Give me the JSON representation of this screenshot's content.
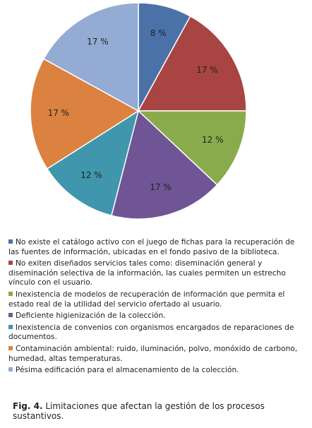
{
  "chart_data": {
    "type": "pie",
    "categories": [
      "No existe el catálogo activo con el juego de fichas para la recuperación de las fuentes de información, ubicadas en el fondo pasivo de la biblioteca.",
      "No exiten diseñados servicios tales como: diseminación general y diseminación selectiva de la información, las cuales permiten un estrecho vínculo con el usuario.",
      "Inexistencia de modelos de recuperación de información que permita el estado real de la utilidad del servicio ofertado al usuario.",
      "Deficiente higienización de la colección.",
      "Inexistencia de convenios con organismos encargados de reparaciones de documentos.",
      "Contaminación ambiental: ruido, iluminación, polvo, monóxido de carbono, humedad, altas temperaturas.",
      "Pésima edificación para el almacenamiento de la colección."
    ],
    "values": [
      8,
      17,
      12,
      17,
      12,
      17,
      17
    ],
    "value_labels": [
      "8 %",
      "17 %",
      "12 %",
      "17 %",
      "12 %",
      "17 %",
      "17 %"
    ],
    "colors": [
      "#4a72a8",
      "#a84442",
      "#8aab4c",
      "#6f5595",
      "#3f96ad",
      "#db8241",
      "#94abd4"
    ]
  },
  "caption": {
    "label": "Fig. 4.",
    "text": "Limitaciones que afectan la gestión de los procesos sustantivos."
  }
}
